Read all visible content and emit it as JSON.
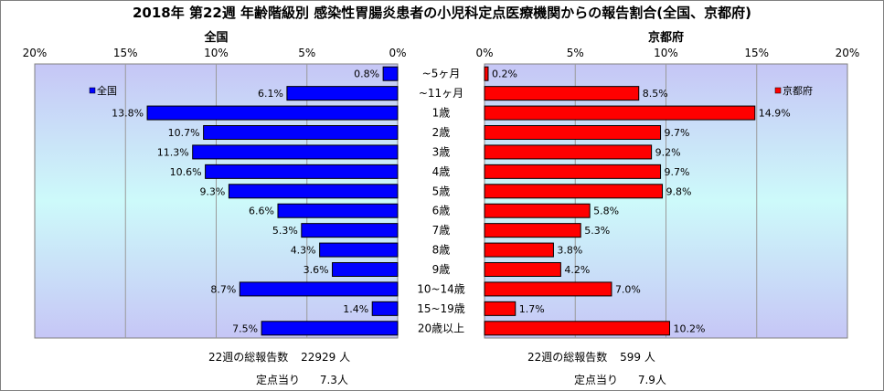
{
  "title": "2018年 第22週 年齢階級別 感染性胃腸炎患者の小児科定点医療機関からの報告割合(全国、京都府)",
  "chart_data": {
    "type": "bar",
    "categories": [
      "~5ヶ月",
      "~11ヶ月",
      "1歳",
      "2歳",
      "3歳",
      "4歳",
      "5歳",
      "6歳",
      "7歳",
      "8歳",
      "9歳",
      "10~14歳",
      "15~19歳",
      "20歳以上"
    ],
    "xlim": [
      0,
      20
    ],
    "x_ticks": [
      "20%",
      "15%",
      "10%",
      "5%",
      "0%"
    ],
    "x_ticks_right": [
      "0%",
      "5%",
      "10%",
      "15%",
      "20%"
    ],
    "series": [
      {
        "name": "全国",
        "color": "#0000ff",
        "values": [
          0.8,
          6.1,
          13.8,
          10.7,
          11.3,
          10.6,
          9.3,
          6.6,
          5.3,
          4.3,
          3.6,
          8.7,
          1.4,
          7.5
        ],
        "labels": [
          "0.8%",
          "6.1%",
          "13.8%",
          "10.7%",
          "11.3%",
          "10.6%",
          "9.3%",
          "6.6%",
          "5.3%",
          "4.3%",
          "3.6%",
          "8.7%",
          "1.4%",
          "7.5%"
        ]
      },
      {
        "name": "京都府",
        "color": "#ff0000",
        "values": [
          0.2,
          8.5,
          14.9,
          9.7,
          9.2,
          9.7,
          9.8,
          5.8,
          5.3,
          3.8,
          4.2,
          7.0,
          1.7,
          10.2
        ],
        "labels": [
          "0.2%",
          "8.5%",
          "14.9%",
          "9.7%",
          "9.2%",
          "9.7%",
          "9.8%",
          "5.8%",
          "5.3%",
          "3.8%",
          "4.2%",
          "7.0%",
          "1.7%",
          "10.2%"
        ]
      }
    ]
  },
  "footer": {
    "national": {
      "total_label": "22週の総報告数",
      "total_value": "22929 人",
      "per_label": "定点当り",
      "per_value": "7.3人"
    },
    "kyoto": {
      "total_label": "22週の総報告数",
      "total_value": "599 人",
      "per_label": "定点当り",
      "per_value": "7.9人"
    }
  }
}
